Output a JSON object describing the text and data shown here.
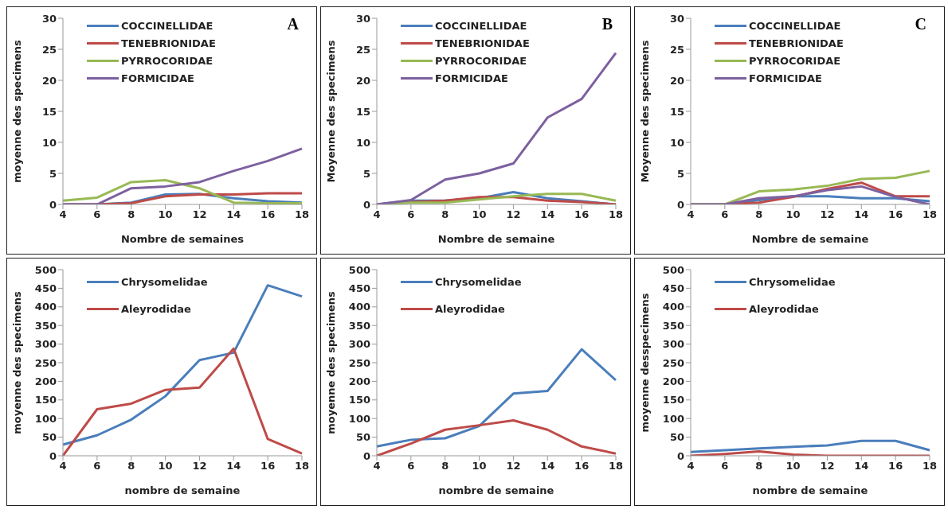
{
  "chart_data": [
    {
      "type": "line",
      "annotations": [
        "A"
      ],
      "xlabel": "Nombre de semaines",
      "ylabel": "moyenne des specimens",
      "categories": [
        "4",
        "6",
        "8",
        "10",
        "12",
        "14",
        "16",
        "18"
      ],
      "ylim": [
        0,
        30
      ],
      "yticks": [
        0,
        5,
        10,
        15,
        20,
        25,
        30
      ],
      "grid": false,
      "legend": "top",
      "series": [
        {
          "name": "COCCINELLIDAE",
          "color": "#4a7ebb",
          "values": [
            0,
            0,
            0.3,
            1.6,
            1.7,
            1,
            0.5,
            0.3
          ]
        },
        {
          "name": "TENEBRIONIDAE",
          "color": "#be4b48",
          "values": [
            0,
            0,
            0.2,
            1.3,
            1.6,
            1.6,
            1.8,
            1.8
          ]
        },
        {
          "name": "PYRROCORIDAE",
          "color": "#98b954",
          "values": [
            0.6,
            1.1,
            3.6,
            3.9,
            2.6,
            0.3,
            0.2,
            0.2
          ]
        },
        {
          "name": "FORMICIDAE",
          "color": "#7d60a0",
          "values": [
            0,
            0,
            2.6,
            2.9,
            3.6,
            5.4,
            7,
            9
          ]
        }
      ]
    },
    {
      "type": "line",
      "annotations": [
        "B"
      ],
      "xlabel": "Nombre de semaine",
      "ylabel": "Moyenne des specimens",
      "categories": [
        "4",
        "6",
        "8",
        "10",
        "12",
        "14",
        "16",
        "18"
      ],
      "ylim": [
        0,
        30
      ],
      "yticks": [
        0,
        5,
        10,
        15,
        20,
        25,
        30
      ],
      "grid": false,
      "legend": "top",
      "series": [
        {
          "name": "COCCINELLIDAE",
          "color": "#4a7ebb",
          "values": [
            0,
            0.6,
            0.6,
            1,
            2,
            1,
            0.5,
            0
          ]
        },
        {
          "name": "TENEBRIONIDAE",
          "color": "#be4b48",
          "values": [
            0,
            0.4,
            0.6,
            1.2,
            1.2,
            0.6,
            0.4,
            0
          ]
        },
        {
          "name": "PYRROCORIDAE",
          "color": "#98b954",
          "values": [
            0,
            0.3,
            0.3,
            0.8,
            1.3,
            1.7,
            1.7,
            0.6
          ]
        },
        {
          "name": "FORMICIDAE",
          "color": "#7d60a0",
          "values": [
            0,
            0.7,
            4,
            5,
            6.6,
            14,
            17,
            24.4
          ]
        }
      ]
    },
    {
      "type": "line",
      "annotations": [
        "C"
      ],
      "xlabel": "Nombre de semaine",
      "ylabel": "Moyenne des specimens",
      "categories": [
        "4",
        "6",
        "8",
        "10",
        "12",
        "14",
        "16",
        "18"
      ],
      "ylim": [
        0,
        30
      ],
      "yticks": [
        0,
        5,
        10,
        15,
        20,
        25,
        30
      ],
      "grid": false,
      "legend": "top",
      "series": [
        {
          "name": "COCCINELLIDAE",
          "color": "#4a7ebb",
          "values": [
            0,
            0,
            0.7,
            1.3,
            1.3,
            1,
            1,
            0.5
          ]
        },
        {
          "name": "TENEBRIONIDAE",
          "color": "#be4b48",
          "values": [
            0,
            0,
            0.3,
            1.2,
            2.5,
            3.5,
            1.3,
            1.3
          ]
        },
        {
          "name": "PYRROCORIDAE",
          "color": "#98b954",
          "values": [
            0,
            0,
            2.1,
            2.4,
            3,
            4.1,
            4.3,
            5.4
          ]
        },
        {
          "name": "FORMICIDAE",
          "color": "#7d60a0",
          "values": [
            0,
            0,
            1,
            1.3,
            2.3,
            2.9,
            1.2,
            0
          ]
        }
      ]
    },
    {
      "type": "line",
      "xlabel": "nombre de semaine",
      "ylabel": "moyenne des specimens",
      "categories": [
        "4",
        "6",
        "8",
        "10",
        "12",
        "14",
        "16",
        "18"
      ],
      "ylim": [
        0,
        500
      ],
      "yticks": [
        0,
        50,
        100,
        150,
        200,
        250,
        300,
        350,
        400,
        450,
        500
      ],
      "grid": false,
      "legend": "top",
      "series": [
        {
          "name": "Chrysomelidae",
          "color": "#4a7ebb",
          "values": [
            30,
            55,
            97,
            160,
            257,
            277,
            458,
            428
          ]
        },
        {
          "name": "Aleyrodidae",
          "color": "#be4b48",
          "values": [
            0,
            125,
            140,
            177,
            183,
            288,
            45,
            6
          ]
        }
      ]
    },
    {
      "type": "line",
      "xlabel": "nombre de semaine",
      "ylabel": "moyenne des specimens",
      "categories": [
        "4",
        "6",
        "8",
        "10",
        "12",
        "14",
        "16",
        "18"
      ],
      "ylim": [
        0,
        500
      ],
      "yticks": [
        0,
        50,
        100,
        150,
        200,
        250,
        300,
        350,
        400,
        450,
        500
      ],
      "grid": false,
      "legend": "top",
      "series": [
        {
          "name": "Chrysomelidae",
          "color": "#4a7ebb",
          "values": [
            25,
            43,
            47,
            80,
            167,
            174,
            286,
            203
          ]
        },
        {
          "name": "Aleyrodidae",
          "color": "#be4b48",
          "values": [
            0,
            33,
            70,
            82,
            95,
            70,
            25,
            6
          ]
        }
      ]
    },
    {
      "type": "line",
      "xlabel": "nombre de semaine",
      "ylabel": "moyenne desspecimens",
      "categories": [
        "4",
        "6",
        "8",
        "10",
        "12",
        "14",
        "16",
        "18"
      ],
      "ylim": [
        0,
        500
      ],
      "yticks": [
        0,
        50,
        100,
        150,
        200,
        250,
        300,
        350,
        400,
        450,
        500
      ],
      "grid": false,
      "legend": "top",
      "series": [
        {
          "name": "Chrysomelidae",
          "color": "#4a7ebb",
          "values": [
            10,
            15,
            20,
            24,
            28,
            40,
            40,
            15
          ]
        },
        {
          "name": "Aleyrodidae",
          "color": "#be4b48",
          "values": [
            0,
            5,
            12,
            3,
            0,
            0,
            0,
            0
          ]
        }
      ]
    }
  ]
}
